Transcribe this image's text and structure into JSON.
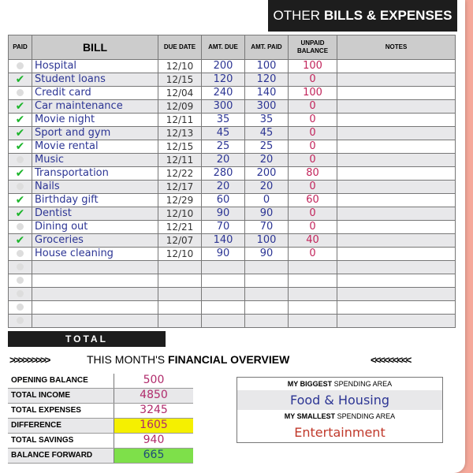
{
  "header": {
    "title_thin": "OTHER",
    "title_bold": "BILLS & EXPENSES"
  },
  "columns": {
    "paid": "PAID",
    "bill": "BILL",
    "due_date": "DUE DATE",
    "amt_due": "AMT. DUE",
    "amt_paid": "AMT. PAID",
    "unpaid": "UNPAID BALANCE",
    "notes": "NOTES"
  },
  "rows": [
    {
      "paid": false,
      "bill": "Hospital",
      "date": "12/10",
      "due": "200",
      "amt_paid": "100",
      "unpaid": "100"
    },
    {
      "paid": true,
      "bill": "Student loans",
      "date": "12/15",
      "due": "120",
      "amt_paid": "120",
      "unpaid": "0"
    },
    {
      "paid": false,
      "bill": "Credit card",
      "date": "12/04",
      "due": "240",
      "amt_paid": "140",
      "unpaid": "100"
    },
    {
      "paid": true,
      "bill": "Car maintenance",
      "date": "12/09",
      "due": "300",
      "amt_paid": "300",
      "unpaid": "0"
    },
    {
      "paid": true,
      "bill": "Movie night",
      "date": "12/11",
      "due": "35",
      "amt_paid": "35",
      "unpaid": "0"
    },
    {
      "paid": true,
      "bill": "Sport and gym",
      "date": "12/13",
      "due": "45",
      "amt_paid": "45",
      "unpaid": "0"
    },
    {
      "paid": true,
      "bill": "Movie rental",
      "date": "12/15",
      "due": "25",
      "amt_paid": "25",
      "unpaid": "0"
    },
    {
      "paid": false,
      "bill": "Music",
      "date": "12/11",
      "due": "20",
      "amt_paid": "20",
      "unpaid": "0"
    },
    {
      "paid": true,
      "bill": "Transportation",
      "date": "12/22",
      "due": "280",
      "amt_paid": "200",
      "unpaid": "80"
    },
    {
      "paid": false,
      "bill": "Nails",
      "date": "12/17",
      "due": "20",
      "amt_paid": "20",
      "unpaid": "0"
    },
    {
      "paid": true,
      "bill": "Birthday gift",
      "date": "12/29",
      "due": "60",
      "amt_paid": "0",
      "unpaid": "60"
    },
    {
      "paid": true,
      "bill": "Dentist",
      "date": "12/10",
      "due": "90",
      "amt_paid": "90",
      "unpaid": "0"
    },
    {
      "paid": false,
      "bill": "Dining out",
      "date": "12/21",
      "due": "70",
      "amt_paid": "70",
      "unpaid": "0"
    },
    {
      "paid": true,
      "bill": "Groceries",
      "date": "12/07",
      "due": "140",
      "amt_paid": "100",
      "unpaid": "40"
    },
    {
      "paid": false,
      "bill": "House cleaning",
      "date": "12/10",
      "due": "90",
      "amt_paid": "90",
      "unpaid": "0"
    },
    {
      "paid": false,
      "bill": "",
      "date": "",
      "due": "",
      "amt_paid": "",
      "unpaid": ""
    },
    {
      "paid": false,
      "bill": "",
      "date": "",
      "due": "",
      "amt_paid": "",
      "unpaid": ""
    },
    {
      "paid": false,
      "bill": "",
      "date": "",
      "due": "",
      "amt_paid": "",
      "unpaid": ""
    },
    {
      "paid": false,
      "bill": "",
      "date": "",
      "due": "",
      "amt_paid": "",
      "unpaid": ""
    },
    {
      "paid": false,
      "bill": "",
      "date": "",
      "due": "",
      "amt_paid": "",
      "unpaid": ""
    }
  ],
  "total_label": "TOTAL",
  "overview": {
    "title_thin": "THIS MONTH'S",
    "title_bold": "FINANCIAL OVERVIEW",
    "arrows_right": ">>>>>>>>>",
    "arrows_left": "<<<<<<<<<",
    "items": [
      {
        "label": "OPENING BALANCE",
        "value": "500",
        "highlight": ""
      },
      {
        "label": "TOTAL INCOME",
        "value": "4850",
        "highlight": ""
      },
      {
        "label": "TOTAL EXPENSES",
        "value": "3245",
        "highlight": ""
      },
      {
        "label": "DIFFERENCE",
        "value": "1605",
        "highlight": "yellow"
      },
      {
        "label": "TOTAL SAVINGS",
        "value": "940",
        "highlight": ""
      },
      {
        "label": "BALANCE FORWARD",
        "value": "665",
        "highlight": "green"
      }
    ],
    "biggest_label_bold": "MY BIGGEST",
    "biggest_label_thin": "SPENDING AREA",
    "biggest_value": "Food & Housing",
    "smallest_label_bold": "MY SMALLEST",
    "smallest_label_thin": "SPENDING AREA",
    "smallest_value": "Entertainment"
  },
  "colors": {
    "background": "#f5a99b",
    "ink_blue": "#2c3594",
    "ink_red": "#c2245b",
    "check_green": "#1cb52b"
  }
}
